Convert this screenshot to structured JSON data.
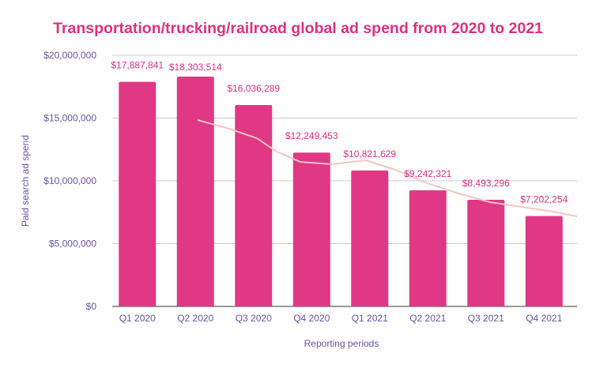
{
  "chart_data": {
    "type": "bar",
    "title": "Transportation/trucking/railroad global ad spend from 2020 to 2021",
    "xlabel": "Reporting periods",
    "ylabel": "Paid search ad spend",
    "categories": [
      "Q1 2020",
      "Q2 2020",
      "Q3 2020",
      "Q4 2020",
      "Q1 2021",
      "Q2 2021",
      "Q3 2021",
      "Q4 2021"
    ],
    "values": [
      17887841,
      18303514,
      16036289,
      12249453,
      10821629,
      9242321,
      8493296,
      7202254
    ],
    "data_labels": [
      "$17,887,841",
      "$18,303,514",
      "$16,036,289",
      "$12,249,453",
      "$10,821,629",
      "$9,242,321",
      "$8,493,296",
      "$7,202,254"
    ],
    "ylim": [
      0,
      20000000
    ],
    "yticks": [
      0,
      5000000,
      10000000,
      15000000,
      20000000
    ],
    "ytick_labels": [
      "$0",
      "$5,000,000",
      "$10,000,000",
      "$15,000,000",
      "$20,000,000"
    ],
    "grid": true,
    "trendline": true,
    "colors": {
      "bar": "#e03885",
      "trend": "#f4c6c0",
      "text": "#6a53a8",
      "title": "#e0307f",
      "grid": "#cccccc"
    }
  }
}
